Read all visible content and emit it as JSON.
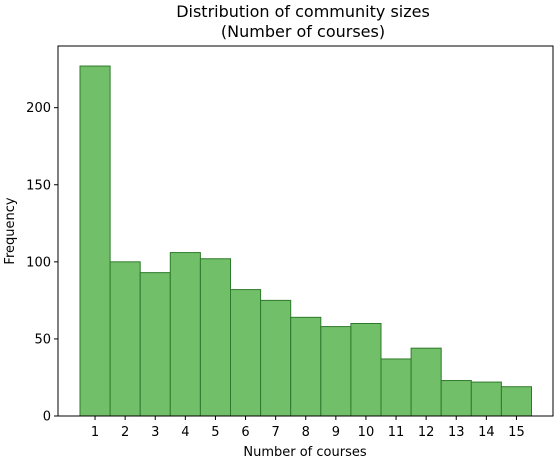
{
  "chart_data": {
    "type": "bar",
    "title": "Distribution of community sizes",
    "subtitle": "(Number of courses)",
    "xlabel": "Number of courses",
    "ylabel": "Frequency",
    "categories": [
      "1",
      "2",
      "3",
      "4",
      "5",
      "6",
      "7",
      "8",
      "9",
      "10",
      "11",
      "12",
      "13",
      "14",
      "15"
    ],
    "values": [
      227,
      100,
      93,
      106,
      102,
      82,
      75,
      64,
      58,
      60,
      37,
      44,
      23,
      22,
      19
    ],
    "yticks": [
      0,
      50,
      100,
      150,
      200
    ],
    "ytick_labels": [
      "0",
      "50",
      "100",
      "150",
      "200"
    ],
    "ylim": [
      0,
      240
    ],
    "grid": false,
    "bar_color": "#72bf6a",
    "bar_edge_color": "#2e7a2b"
  }
}
